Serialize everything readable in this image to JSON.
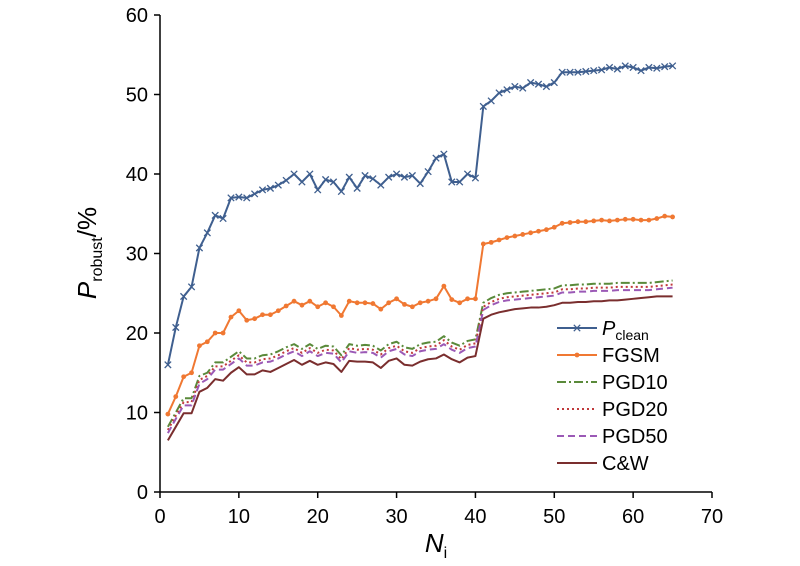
{
  "chart_data": {
    "type": "line",
    "title": "",
    "xlabel": {
      "main": "N",
      "sub": "i"
    },
    "ylabel": {
      "main": "P",
      "sub": "robust",
      "unit": "/%"
    },
    "xlim": [
      0,
      70
    ],
    "ylim": [
      0,
      60
    ],
    "xticks": [
      0,
      10,
      20,
      30,
      40,
      50,
      60,
      70
    ],
    "yticks": [
      0,
      10,
      20,
      30,
      40,
      50,
      60
    ],
    "grid": false,
    "legend": "bottom-right",
    "x": [
      1,
      2,
      3,
      4,
      5,
      6,
      7,
      8,
      9,
      10,
      11,
      12,
      13,
      14,
      15,
      16,
      17,
      18,
      19,
      20,
      21,
      22,
      23,
      24,
      25,
      26,
      27,
      28,
      29,
      30,
      31,
      32,
      33,
      34,
      35,
      36,
      37,
      38,
      39,
      40,
      41,
      42,
      43,
      44,
      45,
      46,
      47,
      48,
      49,
      50,
      51,
      52,
      53,
      54,
      55,
      56,
      57,
      58,
      59,
      60,
      61,
      62,
      63,
      64,
      65
    ],
    "series": [
      {
        "name": "P",
        "name_sub": "clean",
        "color": "#3f5f8f",
        "dash": "",
        "marker": "x",
        "values": [
          16,
          20.7,
          24.6,
          25.8,
          30.7,
          32.6,
          34.8,
          34.4,
          37,
          37.1,
          37,
          37.5,
          38,
          38.2,
          38.6,
          39.2,
          40,
          39,
          40,
          38,
          39.3,
          39,
          37.8,
          39.6,
          38.2,
          39.8,
          39.4,
          38.6,
          39.6,
          40,
          39.6,
          39.8,
          38.8,
          40.3,
          42,
          42.5,
          39,
          39,
          40,
          39.5,
          48.5,
          49.2,
          50.2,
          50.6,
          51,
          50.8,
          51.5,
          51.3,
          51,
          51.5,
          52.8,
          52.8,
          52.8,
          52.9,
          53,
          53.1,
          53.4,
          53.2,
          53.6,
          53.4,
          53,
          53.4,
          53.3,
          53.5,
          53.6
        ]
      },
      {
        "name": "FGSM",
        "color": "#f07832",
        "dash": "",
        "marker": "dot",
        "values": [
          9.8,
          12,
          14.5,
          15,
          18.4,
          18.9,
          20,
          20,
          22,
          22.8,
          21.6,
          21.8,
          22.3,
          22.3,
          22.8,
          23.4,
          24,
          23.5,
          24,
          23.3,
          23.8,
          23.3,
          22.2,
          24,
          23.8,
          23.8,
          23.7,
          23,
          23.8,
          24.3,
          23.6,
          23.3,
          23.8,
          24,
          24.3,
          25.9,
          24.2,
          23.8,
          24.3,
          24.3,
          31.2,
          31.4,
          31.7,
          32,
          32.2,
          32.4,
          32.6,
          32.8,
          33,
          33.3,
          33.8,
          33.9,
          34,
          34,
          34.1,
          34.2,
          34.1,
          34.2,
          34.3,
          34.3,
          34.2,
          34.2,
          34.4,
          34.7,
          34.6
        ]
      },
      {
        "name": "PGD10",
        "color": "#5a8a3a",
        "dash": "9,3,2,3",
        "marker": "",
        "values": [
          8.2,
          10,
          11.8,
          11.8,
          14.6,
          15,
          16.3,
          16.3,
          17,
          17.7,
          16.8,
          16.8,
          17.2,
          17.3,
          17.7,
          18.2,
          18.6,
          18,
          18.6,
          18,
          18.4,
          18.3,
          17.2,
          18.6,
          18.4,
          18.5,
          18.4,
          17.8,
          18.6,
          18.9,
          18.2,
          18,
          18.6,
          18.8,
          18.9,
          19.6,
          18.8,
          18.4,
          19,
          19.2,
          23.8,
          24.4,
          24.8,
          25,
          25.1,
          25.2,
          25.3,
          25.4,
          25.5,
          25.6,
          26,
          26,
          26.1,
          26.1,
          26.2,
          26.2,
          26.2,
          26.3,
          26.3,
          26.3,
          26.3,
          26.3,
          26.4,
          26.5,
          26.6
        ]
      },
      {
        "name": "PGD20",
        "color": "#c0393b",
        "dash": "2,3",
        "marker": "",
        "values": [
          7.8,
          9.6,
          11.3,
          11.3,
          14.1,
          14.6,
          15.8,
          15.8,
          16.5,
          17.2,
          16.3,
          16.3,
          16.7,
          16.8,
          17.2,
          17.7,
          18.1,
          17.5,
          18.1,
          17.5,
          17.9,
          17.8,
          16.7,
          18.1,
          17.9,
          18,
          17.9,
          17.3,
          18.1,
          18.4,
          17.7,
          17.5,
          18.1,
          18.3,
          18.4,
          19.1,
          18.3,
          17.9,
          18.5,
          18.7,
          23.3,
          23.9,
          24.3,
          24.5,
          24.6,
          24.7,
          24.8,
          24.9,
          25,
          25.1,
          25.5,
          25.5,
          25.6,
          25.6,
          25.7,
          25.7,
          25.7,
          25.8,
          25.8,
          25.8,
          25.8,
          25.8,
          25.9,
          26,
          26.1
        ]
      },
      {
        "name": "PGD50",
        "color": "#9b59b6",
        "dash": "7,4",
        "marker": "",
        "values": [
          7.4,
          9.2,
          10.9,
          10.9,
          13.6,
          14.2,
          15.4,
          15.4,
          16.1,
          16.8,
          15.9,
          15.9,
          16.3,
          16.4,
          16.8,
          17.3,
          17.7,
          17.1,
          17.7,
          17.1,
          17.5,
          17.4,
          16.3,
          17.7,
          17.5,
          17.6,
          17.5,
          16.9,
          17.7,
          18,
          17.3,
          17.1,
          17.7,
          17.9,
          18,
          18.6,
          17.9,
          17.5,
          18.1,
          18.3,
          22.9,
          23.5,
          23.9,
          24.1,
          24.2,
          24.3,
          24.4,
          24.5,
          24.6,
          24.7,
          25.1,
          25.1,
          25.2,
          25.2,
          25.3,
          25.3,
          25.3,
          25.4,
          25.4,
          25.4,
          25.4,
          25.4,
          25.5,
          25.6,
          25.7
        ]
      },
      {
        "name": "C&W",
        "color": "#7a2e2e",
        "dash": "",
        "marker": "",
        "values": [
          6.5,
          8.2,
          9.9,
          9.9,
          12.6,
          13.1,
          14.2,
          14,
          15,
          15.7,
          14.8,
          14.8,
          15.3,
          15.1,
          15.6,
          16.1,
          16.6,
          16,
          16.5,
          16,
          16.3,
          16.1,
          15.1,
          16.5,
          16.4,
          16.4,
          16.3,
          15.6,
          16.5,
          16.8,
          16,
          15.9,
          16.4,
          16.7,
          16.8,
          17.3,
          16.7,
          16.3,
          16.9,
          17.1,
          21.8,
          22.3,
          22.6,
          22.8,
          23,
          23.1,
          23.2,
          23.2,
          23.3,
          23.5,
          23.8,
          23.8,
          23.9,
          23.9,
          24,
          24,
          24.1,
          24.1,
          24.2,
          24.3,
          24.4,
          24.5,
          24.6,
          24.6,
          24.6
        ]
      }
    ]
  }
}
